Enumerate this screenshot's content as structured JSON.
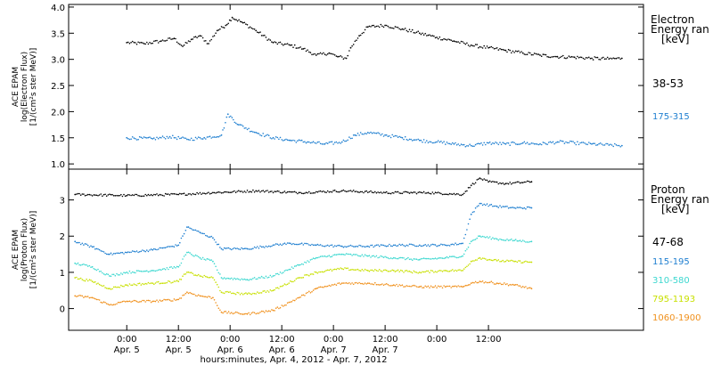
{
  "chart_data": [
    {
      "type": "scatter",
      "panel": "electron",
      "ylabel_lines": [
        "ACE EPAM",
        "log(Electron Flux)",
        "[1/(cm²s ster MeV)]"
      ],
      "ylim": [
        0.9,
        4.05
      ],
      "yticks": [
        1.0,
        1.5,
        2.0,
        2.5,
        3.0,
        3.5,
        4.0
      ],
      "ytick_labels": [
        "1.0",
        "1.5",
        "2.0",
        "2.5",
        "3.0",
        "3.5",
        "4.0"
      ],
      "legend_title_lines": [
        "Electron",
        "Energy ran",
        "[keV]"
      ],
      "series": [
        {
          "name": "38-53",
          "color": "#000000",
          "points": [
            [
              0,
              3.32
            ],
            [
              4,
              3.3
            ],
            [
              8,
              3.35
            ],
            [
              11,
              3.4
            ],
            [
              13,
              3.25
            ],
            [
              15,
              3.38
            ],
            [
              17,
              3.45
            ],
            [
              19,
              3.3
            ],
            [
              21,
              3.55
            ],
            [
              23,
              3.65
            ],
            [
              24.5,
              3.8
            ],
            [
              27,
              3.7
            ],
            [
              30,
              3.55
            ],
            [
              34,
              3.32
            ],
            [
              38,
              3.27
            ],
            [
              41,
              3.2
            ],
            [
              44,
              3.08
            ],
            [
              47,
              3.12
            ],
            [
              49,
              3.05
            ],
            [
              51,
              3.02
            ],
            [
              52,
              3.22
            ],
            [
              54,
              3.45
            ],
            [
              56,
              3.62
            ],
            [
              60,
              3.65
            ],
            [
              64,
              3.58
            ],
            [
              68,
              3.5
            ],
            [
              72,
              3.42
            ],
            [
              76,
              3.35
            ],
            [
              80,
              3.27
            ],
            [
              84,
              3.22
            ],
            [
              88,
              3.17
            ],
            [
              92,
              3.12
            ],
            [
              96,
              3.08
            ],
            [
              100,
              3.05
            ],
            [
              104,
              3.04
            ],
            [
              108,
              3.02
            ],
            [
              112,
              3.01
            ],
            [
              115,
              3.02
            ]
          ]
        },
        {
          "name": "175-315",
          "color": "#1f7fd0",
          "points": [
            [
              0,
              1.5
            ],
            [
              6,
              1.48
            ],
            [
              10,
              1.52
            ],
            [
              14,
              1.47
            ],
            [
              18,
              1.5
            ],
            [
              22,
              1.55
            ],
            [
              23.5,
              1.95
            ],
            [
              26,
              1.75
            ],
            [
              30,
              1.6
            ],
            [
              34,
              1.5
            ],
            [
              38,
              1.45
            ],
            [
              42,
              1.42
            ],
            [
              46,
              1.38
            ],
            [
              50,
              1.42
            ],
            [
              53,
              1.55
            ],
            [
              56,
              1.6
            ],
            [
              60,
              1.55
            ],
            [
              64,
              1.5
            ],
            [
              68,
              1.45
            ],
            [
              72,
              1.42
            ],
            [
              76,
              1.38
            ],
            [
              80,
              1.35
            ],
            [
              84,
              1.4
            ],
            [
              88,
              1.38
            ],
            [
              92,
              1.4
            ],
            [
              96,
              1.38
            ],
            [
              100,
              1.42
            ],
            [
              104,
              1.4
            ],
            [
              108,
              1.38
            ],
            [
              112,
              1.36
            ],
            [
              115,
              1.35
            ]
          ]
        }
      ]
    },
    {
      "type": "scatter",
      "panel": "proton",
      "ylabel_lines": [
        "ACE EPAM",
        "log(Proton Flux)",
        "[1/(cm²s ster MeV)]"
      ],
      "ylim": [
        -0.6,
        3.85
      ],
      "yticks": [
        0,
        1,
        2,
        3
      ],
      "ytick_labels": [
        "0",
        "1",
        "2",
        "3"
      ],
      "xlim": [
        -13.5,
        120
      ],
      "xticks": [
        0,
        12,
        24,
        36,
        48,
        60,
        72,
        84
      ],
      "xtick_labels": [
        "0:00",
        "12:00",
        "0:00",
        "12:00",
        "0:00",
        "12:00",
        "0:00",
        "12:00"
      ],
      "xtick_sublabels": [
        "Apr. 5",
        "Apr. 5",
        "Apr. 6",
        "Apr. 6",
        "Apr. 7",
        "Apr. 7",
        "",
        ""
      ],
      "xlabel": "hours:minutes, Apr.  4, 2012 - Apr.  7, 2012",
      "legend_title_lines": [
        "Proton",
        "Energy ran",
        "[keV]"
      ],
      "series": [
        {
          "name": "47-68",
          "color": "#000000",
          "points": [
            [
              -12,
              3.15
            ],
            [
              0,
              3.12
            ],
            [
              12,
              3.15
            ],
            [
              20,
              3.2
            ],
            [
              30,
              3.25
            ],
            [
              40,
              3.2
            ],
            [
              50,
              3.25
            ],
            [
              60,
              3.2
            ],
            [
              70,
              3.2
            ],
            [
              78,
              3.15
            ],
            [
              80,
              3.4
            ],
            [
              82,
              3.6
            ],
            [
              84,
              3.5
            ],
            [
              88,
              3.45
            ],
            [
              94,
              3.5
            ]
          ]
        },
        {
          "name": "115-195",
          "color": "#1f7fd0",
          "points": [
            [
              -12,
              1.85
            ],
            [
              -8,
              1.7
            ],
            [
              -4,
              1.5
            ],
            [
              0,
              1.55
            ],
            [
              6,
              1.62
            ],
            [
              12,
              1.75
            ],
            [
              14,
              2.25
            ],
            [
              17,
              2.1
            ],
            [
              20,
              1.95
            ],
            [
              22,
              1.65
            ],
            [
              28,
              1.65
            ],
            [
              34,
              1.75
            ],
            [
              38,
              1.8
            ],
            [
              44,
              1.75
            ],
            [
              50,
              1.72
            ],
            [
              56,
              1.72
            ],
            [
              62,
              1.75
            ],
            [
              68,
              1.75
            ],
            [
              74,
              1.75
            ],
            [
              78,
              1.8
            ],
            [
              80,
              2.6
            ],
            [
              82,
              2.9
            ],
            [
              86,
              2.82
            ],
            [
              90,
              2.78
            ],
            [
              94,
              2.78
            ]
          ]
        },
        {
          "name": "310-580",
          "color": "#3dd8d0",
          "points": [
            [
              -12,
              1.25
            ],
            [
              -8,
              1.15
            ],
            [
              -4,
              0.9
            ],
            [
              0,
              1.0
            ],
            [
              6,
              1.05
            ],
            [
              12,
              1.15
            ],
            [
              14,
              1.55
            ],
            [
              17,
              1.4
            ],
            [
              20,
              1.3
            ],
            [
              22,
              0.85
            ],
            [
              28,
              0.8
            ],
            [
              34,
              0.9
            ],
            [
              40,
              1.2
            ],
            [
              44,
              1.4
            ],
            [
              50,
              1.5
            ],
            [
              56,
              1.45
            ],
            [
              62,
              1.4
            ],
            [
              68,
              1.35
            ],
            [
              74,
              1.4
            ],
            [
              78,
              1.45
            ],
            [
              80,
              1.85
            ],
            [
              82,
              2.0
            ],
            [
              86,
              1.92
            ],
            [
              90,
              1.88
            ],
            [
              94,
              1.85
            ]
          ]
        },
        {
          "name": "795-1193",
          "color": "#c8e000",
          "points": [
            [
              -12,
              0.85
            ],
            [
              -8,
              0.75
            ],
            [
              -4,
              0.55
            ],
            [
              0,
              0.65
            ],
            [
              6,
              0.7
            ],
            [
              12,
              0.75
            ],
            [
              14,
              1.0
            ],
            [
              17,
              0.9
            ],
            [
              20,
              0.85
            ],
            [
              22,
              0.45
            ],
            [
              28,
              0.4
            ],
            [
              34,
              0.5
            ],
            [
              40,
              0.85
            ],
            [
              44,
              1.0
            ],
            [
              50,
              1.1
            ],
            [
              56,
              1.05
            ],
            [
              62,
              1.05
            ],
            [
              68,
              1.0
            ],
            [
              74,
              1.05
            ],
            [
              78,
              1.05
            ],
            [
              80,
              1.3
            ],
            [
              82,
              1.4
            ],
            [
              86,
              1.32
            ],
            [
              90,
              1.3
            ],
            [
              94,
              1.28
            ]
          ]
        },
        {
          "name": "1060-1900",
          "color": "#f0901c",
          "points": [
            [
              -12,
              0.35
            ],
            [
              -8,
              0.3
            ],
            [
              -4,
              0.1
            ],
            [
              0,
              0.2
            ],
            [
              6,
              0.2
            ],
            [
              12,
              0.25
            ],
            [
              14,
              0.45
            ],
            [
              17,
              0.35
            ],
            [
              20,
              0.3
            ],
            [
              22,
              -0.1
            ],
            [
              28,
              -0.15
            ],
            [
              34,
              -0.05
            ],
            [
              40,
              0.3
            ],
            [
              44,
              0.55
            ],
            [
              50,
              0.7
            ],
            [
              56,
              0.7
            ],
            [
              62,
              0.65
            ],
            [
              68,
              0.6
            ],
            [
              74,
              0.6
            ],
            [
              78,
              0.6
            ],
            [
              80,
              0.7
            ],
            [
              82,
              0.75
            ],
            [
              86,
              0.7
            ],
            [
              90,
              0.65
            ],
            [
              94,
              0.55
            ]
          ]
        }
      ]
    }
  ]
}
